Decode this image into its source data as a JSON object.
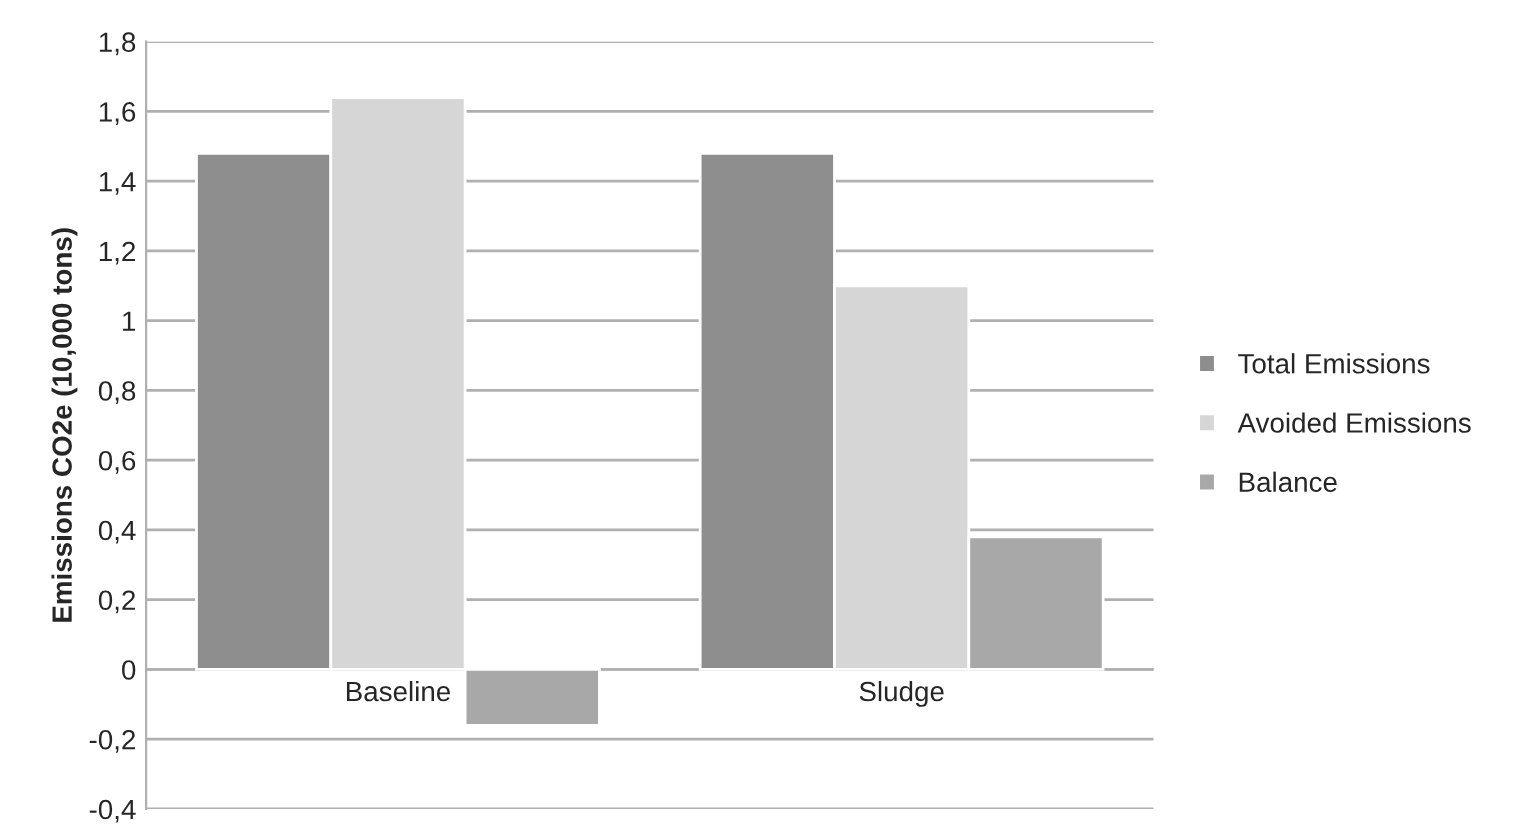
{
  "chart_data": {
    "type": "bar",
    "ylabel": "Emissions CO2e (10,000 tons)",
    "categories": [
      "Baseline",
      "Sludge"
    ],
    "series": [
      {
        "name": "Total Emissions",
        "color": "#8e8e8e",
        "values": [
          1.48,
          1.48
        ]
      },
      {
        "name": "Avoided Emissions",
        "color": "#d6d6d6",
        "values": [
          1.64,
          1.1
        ]
      },
      {
        "name": "Balance",
        "color": "#a8a8a8",
        "values": [
          -0.16,
          0.38
        ]
      }
    ],
    "ylim": [
      -0.4,
      1.8
    ],
    "yticks": [
      {
        "value": -0.4,
        "label": "-0,4"
      },
      {
        "value": -0.2,
        "label": "-0,2"
      },
      0,
      {
        "value": 0.2,
        "label": "0,2"
      },
      {
        "value": 0.4,
        "label": "0,4"
      },
      {
        "value": 0.6,
        "label": "0,6"
      },
      {
        "value": 0.8,
        "label": "0,8"
      },
      1,
      {
        "value": 1.2,
        "label": "1,2"
      },
      {
        "value": 1.4,
        "label": "1,4"
      },
      {
        "value": 1.6,
        "label": "1,6"
      },
      {
        "value": 1.8,
        "label": "1,8"
      }
    ],
    "grid": "y",
    "legend": "right"
  }
}
